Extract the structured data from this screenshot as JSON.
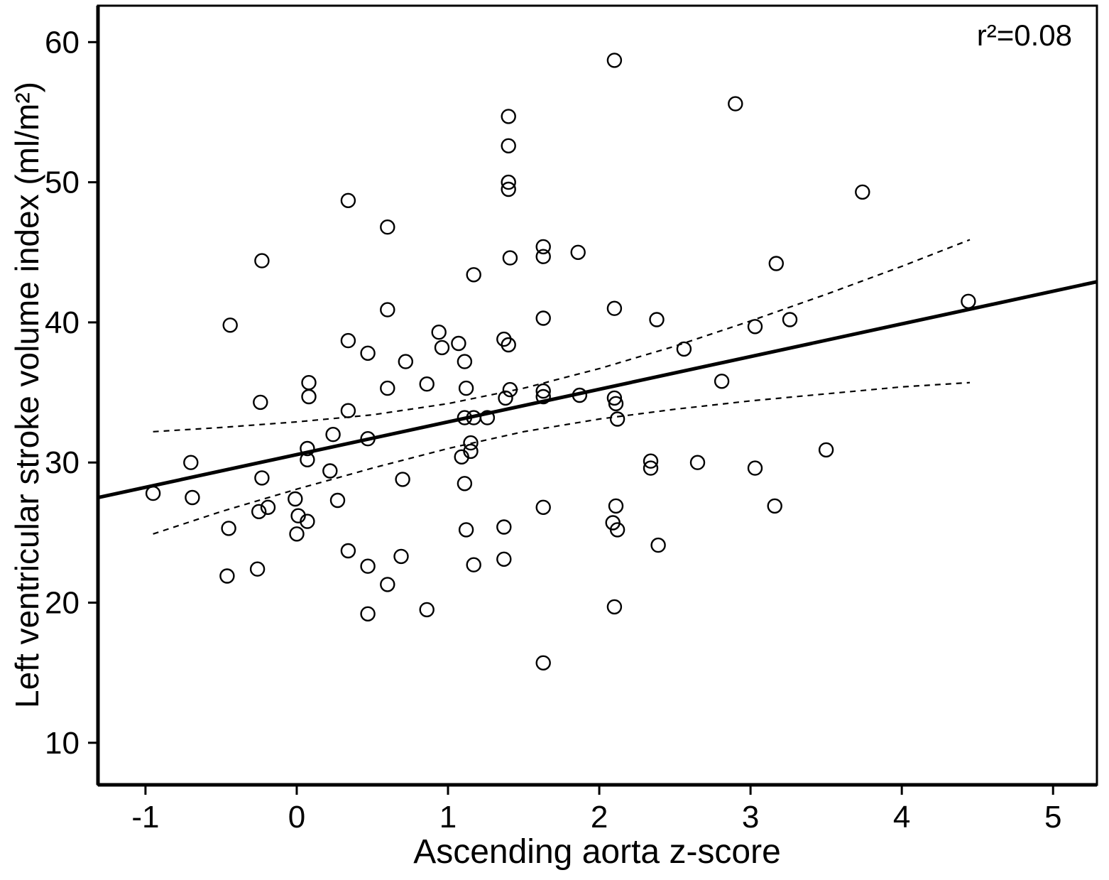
{
  "chart_data": {
    "type": "scatter",
    "title": "",
    "xlabel": "Ascending aorta z-score",
    "ylabel": "Left ventricular stroke volume index (ml/m²)",
    "annotation": "r²=0.08",
    "xlim": [
      -1.314,
      5.29
    ],
    "ylim": [
      7.0,
      62.6
    ],
    "x_ticks": [
      -1,
      0,
      1,
      2,
      3,
      4,
      5
    ],
    "y_ticks": [
      10,
      20,
      30,
      40,
      50,
      60
    ],
    "grid": false,
    "legend": "none",
    "marker": {
      "shape": "open-circle",
      "radius_px": 9.5,
      "stroke_px": 2.4
    },
    "colors": {
      "points": "#000000",
      "line": "#000000",
      "ci": "#000000",
      "background": "#ffffff"
    },
    "regression_line": {
      "x1": -1.314,
      "y1": 27.5,
      "x2": 5.29,
      "y2": 42.9
    },
    "ci_upper": [
      [
        -0.95,
        32.2
      ],
      [
        -0.5,
        32.5
      ],
      [
        0.0,
        32.9
      ],
      [
        0.5,
        33.4
      ],
      [
        1.0,
        34.2
      ],
      [
        1.5,
        35.3
      ],
      [
        2.0,
        36.7
      ],
      [
        2.5,
        38.3
      ],
      [
        3.0,
        40.1
      ],
      [
        3.5,
        42.0
      ],
      [
        4.0,
        44.0
      ],
      [
        4.45,
        45.9
      ]
    ],
    "ci_lower": [
      [
        -0.95,
        24.9
      ],
      [
        -0.5,
        26.5
      ],
      [
        0.0,
        28.1
      ],
      [
        0.5,
        29.6
      ],
      [
        1.0,
        31.0
      ],
      [
        1.5,
        32.2
      ],
      [
        2.0,
        33.1
      ],
      [
        2.5,
        33.8
      ],
      [
        3.0,
        34.4
      ],
      [
        3.5,
        34.9
      ],
      [
        4.0,
        35.4
      ],
      [
        4.45,
        35.7
      ]
    ],
    "points": [
      [
        -0.95,
        27.8
      ],
      [
        -0.7,
        30.0
      ],
      [
        -0.69,
        27.5
      ],
      [
        -0.46,
        21.9
      ],
      [
        -0.45,
        25.3
      ],
      [
        -0.44,
        39.8
      ],
      [
        -0.26,
        22.4
      ],
      [
        -0.25,
        26.5
      ],
      [
        -0.24,
        34.3
      ],
      [
        -0.23,
        44.4
      ],
      [
        -0.23,
        28.9
      ],
      [
        -0.19,
        26.8
      ],
      [
        -0.01,
        27.4
      ],
      [
        0.0,
        24.9
      ],
      [
        0.01,
        26.2
      ],
      [
        0.07,
        25.8
      ],
      [
        0.07,
        31.0
      ],
      [
        0.07,
        30.2
      ],
      [
        0.08,
        35.7
      ],
      [
        0.08,
        34.7
      ],
      [
        0.22,
        29.4
      ],
      [
        0.24,
        32.0
      ],
      [
        0.27,
        27.3
      ],
      [
        0.34,
        48.7
      ],
      [
        0.34,
        38.7
      ],
      [
        0.34,
        33.7
      ],
      [
        0.34,
        23.7
      ],
      [
        0.47,
        37.8
      ],
      [
        0.47,
        31.7
      ],
      [
        0.47,
        22.6
      ],
      [
        0.47,
        19.2
      ],
      [
        0.6,
        46.8
      ],
      [
        0.6,
        40.9
      ],
      [
        0.6,
        35.3
      ],
      [
        0.6,
        21.3
      ],
      [
        0.69,
        23.3
      ],
      [
        0.7,
        28.8
      ],
      [
        0.72,
        37.2
      ],
      [
        0.86,
        35.6
      ],
      [
        0.86,
        19.5
      ],
      [
        0.94,
        39.3
      ],
      [
        0.96,
        38.2
      ],
      [
        1.07,
        38.5
      ],
      [
        1.09,
        30.4
      ],
      [
        1.11,
        37.2
      ],
      [
        1.11,
        33.2
      ],
      [
        1.11,
        28.5
      ],
      [
        1.12,
        35.3
      ],
      [
        1.12,
        25.2
      ],
      [
        1.15,
        31.4
      ],
      [
        1.15,
        30.8
      ],
      [
        1.17,
        43.4
      ],
      [
        1.17,
        33.2
      ],
      [
        1.17,
        22.7
      ],
      [
        1.26,
        33.2
      ],
      [
        1.37,
        38.8
      ],
      [
        1.37,
        25.4
      ],
      [
        1.37,
        23.1
      ],
      [
        1.38,
        34.6
      ],
      [
        1.4,
        54.7
      ],
      [
        1.4,
        52.6
      ],
      [
        1.4,
        50.0
      ],
      [
        1.4,
        49.5
      ],
      [
        1.4,
        38.4
      ],
      [
        1.41,
        44.6
      ],
      [
        1.41,
        35.2
      ],
      [
        1.63,
        45.4
      ],
      [
        1.63,
        44.7
      ],
      [
        1.63,
        40.3
      ],
      [
        1.63,
        35.1
      ],
      [
        1.63,
        34.7
      ],
      [
        1.63,
        26.8
      ],
      [
        1.63,
        15.7
      ],
      [
        1.86,
        45.0
      ],
      [
        1.87,
        34.8
      ],
      [
        2.09,
        25.7
      ],
      [
        2.1,
        58.7
      ],
      [
        2.1,
        41.0
      ],
      [
        2.1,
        34.6
      ],
      [
        2.1,
        19.7
      ],
      [
        2.11,
        34.2
      ],
      [
        2.11,
        26.9
      ],
      [
        2.12,
        25.2
      ],
      [
        2.12,
        33.1
      ],
      [
        2.34,
        30.1
      ],
      [
        2.34,
        29.6
      ],
      [
        2.38,
        40.2
      ],
      [
        2.39,
        24.1
      ],
      [
        2.56,
        38.1
      ],
      [
        2.65,
        30.0
      ],
      [
        2.81,
        35.8
      ],
      [
        2.9,
        55.6
      ],
      [
        3.03,
        39.7
      ],
      [
        3.03,
        29.6
      ],
      [
        3.16,
        26.9
      ],
      [
        3.17,
        44.2
      ],
      [
        3.26,
        40.2
      ],
      [
        3.5,
        30.9
      ],
      [
        3.74,
        49.3
      ],
      [
        4.44,
        41.5
      ]
    ]
  }
}
